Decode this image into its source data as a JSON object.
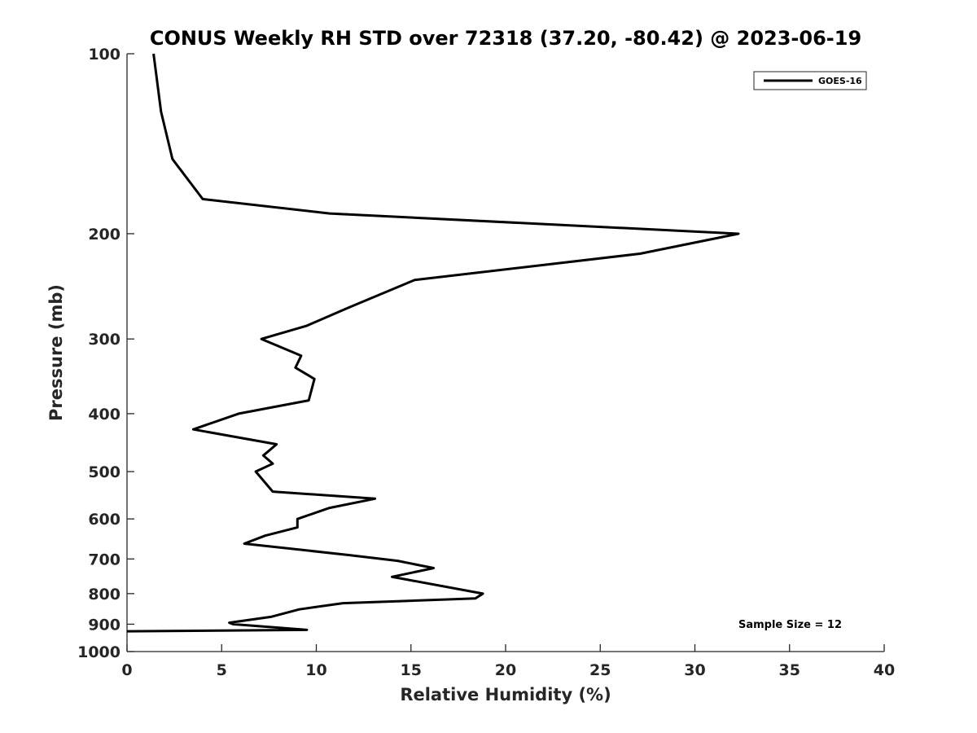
{
  "chart_data": {
    "type": "line",
    "title": "CONUS Weekly RH STD over 72318 (37.20, -80.42) @ 2023-06-19",
    "xlabel": "Relative Humidity (%)",
    "ylabel": "Pressure (mb)",
    "xlim": [
      0,
      40
    ],
    "ylim": [
      100,
      1000
    ],
    "y_scale": "log",
    "y_reversed": true,
    "x_ticks": [
      "0",
      "5",
      "10",
      "15",
      "20",
      "25",
      "30",
      "35",
      "40"
    ],
    "y_ticks": [
      "100",
      "200",
      "300",
      "400",
      "500",
      "600",
      "700",
      "800",
      "900",
      "1000"
    ],
    "legend": {
      "position": "top-right",
      "entries": [
        "GOES-16"
      ]
    },
    "annotation": "Sample Size = 12",
    "series": [
      {
        "name": "GOES-16",
        "color": "#000000",
        "x": [
          1.4,
          1.8,
          2.4,
          4.0,
          10.7,
          32.3,
          27.1,
          15.2,
          11.8,
          9.5,
          7.1,
          9.2,
          8.9,
          9.9,
          9.6,
          5.9,
          3.5,
          7.9,
          7.2,
          7.7,
          6.8,
          7.7,
          13.1,
          10.7,
          9.0,
          9.0,
          7.3,
          6.2,
          11.8,
          14.3,
          16.2,
          14.0,
          14.5,
          18.8,
          18.4,
          11.4,
          9.1,
          7.6,
          5.4,
          5.6,
          9.5,
          0.0
        ],
        "y": [
          100,
          125,
          150,
          175,
          185,
          200,
          216,
          239,
          265,
          285,
          300,
          320,
          335,
          350,
          380,
          400,
          425,
          450,
          470,
          485,
          500,
          540,
          555,
          575,
          600,
          620,
          640,
          660,
          690,
          705,
          725,
          750,
          755,
          800,
          815,
          830,
          850,
          875,
          895,
          900,
          920,
          925
        ]
      }
    ]
  }
}
